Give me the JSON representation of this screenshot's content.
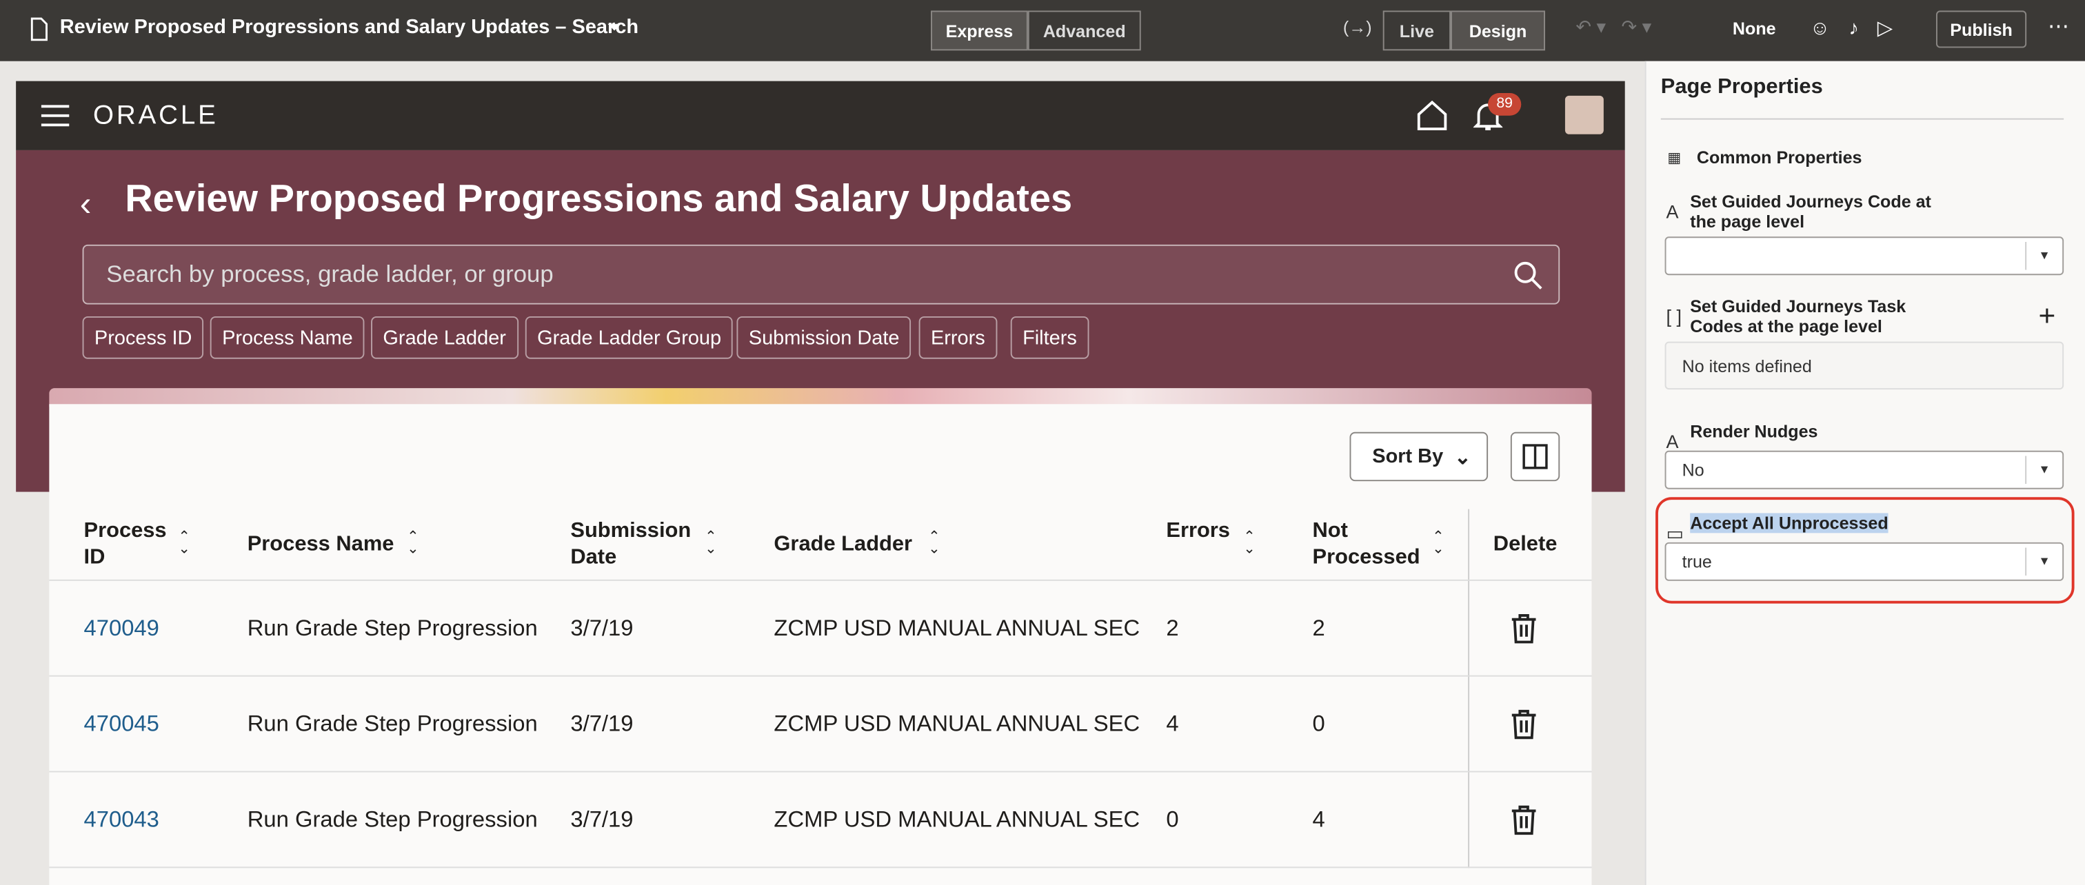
{
  "toolbar": {
    "title": "Review Proposed Progressions and Salary Updates – Search",
    "modes": [
      "Express",
      "Advanced"
    ],
    "views": [
      "Live",
      "Design"
    ],
    "none": "None",
    "publish": "Publish"
  },
  "app": {
    "logo": "ORACLE",
    "notifications": "89",
    "page_title": "Review Proposed Progressions and Salary Updates",
    "search_placeholder": "Search by process, grade ladder, or group",
    "filters": [
      "Process ID",
      "Process Name",
      "Grade Ladder",
      "Grade Ladder Group",
      "Submission Date",
      "Errors",
      "Filters"
    ],
    "sort_by": "Sort By",
    "table": {
      "columns": [
        "Process ID",
        "Process Name",
        "Submission Date",
        "Grade Ladder",
        "Errors",
        "Not Processed",
        "Delete"
      ],
      "rows": [
        [
          "470049",
          "Run Grade Step Progression",
          "3/7/19",
          "ZCMP USD MANUAL ANNUAL SEC",
          "2",
          "2"
        ],
        [
          "470045",
          "Run Grade Step Progression",
          "3/7/19",
          "ZCMP USD MANUAL ANNUAL SEC",
          "4",
          "0"
        ],
        [
          "470043",
          "Run Grade Step Progression",
          "3/7/19",
          "ZCMP USD MANUAL ANNUAL SEC",
          "0",
          "4"
        ]
      ]
    }
  },
  "panel": {
    "title": "Page Properties",
    "common": "Common Properties",
    "properties": [
      {
        "label": "Set Guided Journeys Code at the page level",
        "value": null
      },
      {
        "label": "Set Guided Journeys Task Codes at the page level",
        "value": "No items defined"
      },
      {
        "label": "Render Nudges",
        "value": "No"
      },
      {
        "label": "Accept All Unprocessed",
        "value": "true"
      }
    ]
  }
}
